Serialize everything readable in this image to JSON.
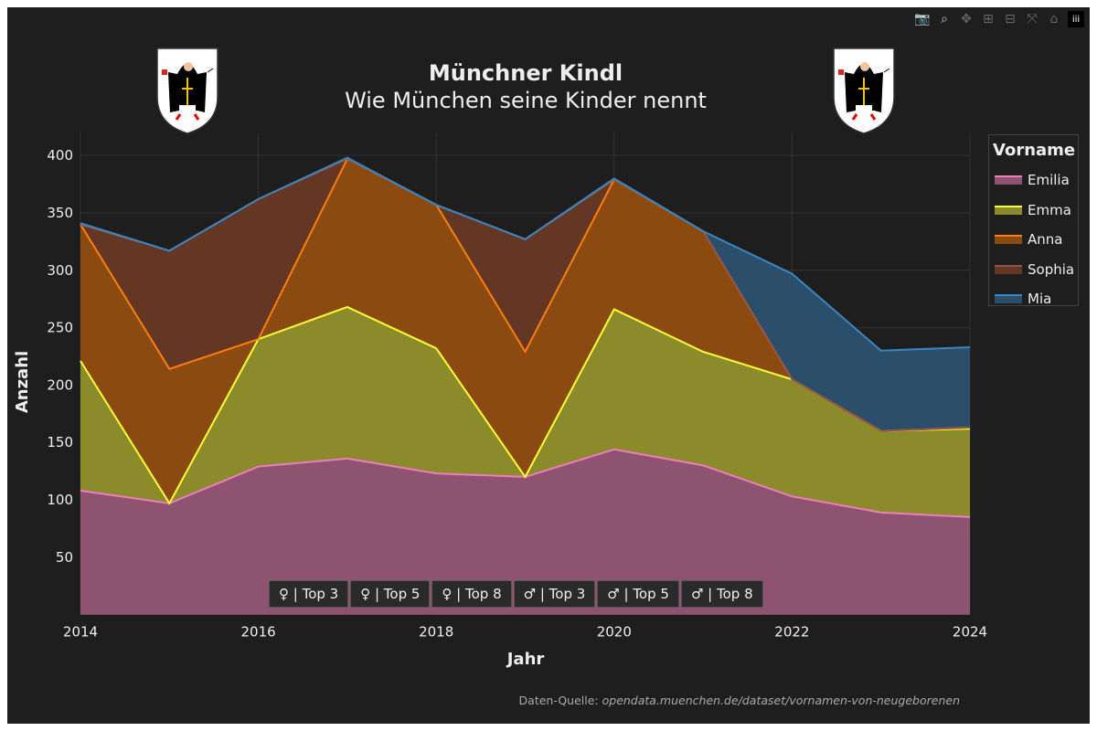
{
  "title": "Münchner Kindl",
  "subtitle": "Wie München seine Kinder nennt",
  "modebar": [
    "camera-icon",
    "zoom-icon",
    "pan-icon",
    "zoom-in-icon",
    "zoom-out-icon",
    "autoscale-icon",
    "home-icon",
    "plotly-logo-icon"
  ],
  "buttons": [
    "♀ | Top 3",
    "♀ | Top 5",
    "♀ | Top 8",
    "♂ | Top 3",
    "♂ | Top 5",
    "♂ | Top 8"
  ],
  "source": {
    "label": "Daten-Quelle:",
    "link": "opendata.muenchen.de/dataset/vornamen-von-neugeborenen"
  },
  "chart_data": {
    "type": "area",
    "stacked": true,
    "xlabel": "Jahr",
    "ylabel": "Anzahl",
    "xlim": [
      2014,
      2024
    ],
    "ylim": [
      0,
      420
    ],
    "xticks": [
      "2014",
      "2016",
      "2018",
      "2020",
      "2022",
      "2024"
    ],
    "yticks": [
      "50",
      "100",
      "150",
      "200",
      "250",
      "300",
      "350",
      "400"
    ],
    "grid": true,
    "legend": {
      "title": "Vorname",
      "placement": "right"
    },
    "x": [
      2014,
      2015,
      2016,
      2017,
      2018,
      2019,
      2020,
      2021,
      2022,
      2023,
      2024
    ],
    "series": [
      {
        "name": "Emilia",
        "color": "#f07cc0",
        "fill": "#8e5370",
        "values": [
          108,
          97,
          129,
          136,
          123,
          120,
          144,
          130,
          103,
          89,
          85
        ]
      },
      {
        "name": "Emma",
        "color": "#ffff33",
        "fill": "#8c8b2b",
        "values": [
          113,
          0,
          111,
          132,
          109,
          0,
          122,
          99,
          102,
          71,
          77
        ]
      },
      {
        "name": "Anna",
        "color": "#ff7f0e",
        "fill": "#8b4a10",
        "values": [
          119,
          117,
          0,
          129,
          125,
          109,
          113,
          105,
          0,
          0,
          1
        ]
      },
      {
        "name": "Sophia",
        "color": "#8c564b",
        "fill": "#633723",
        "values": [
          0,
          103,
          122,
          0,
          0,
          98,
          0,
          0,
          0,
          0,
          0
        ]
      },
      {
        "name": "Mia",
        "color": "#3a86c2",
        "fill": "#2b4f6b",
        "values": [
          1,
          0,
          0,
          1,
          0,
          0,
          1,
          0,
          92,
          70,
          70
        ]
      }
    ]
  }
}
